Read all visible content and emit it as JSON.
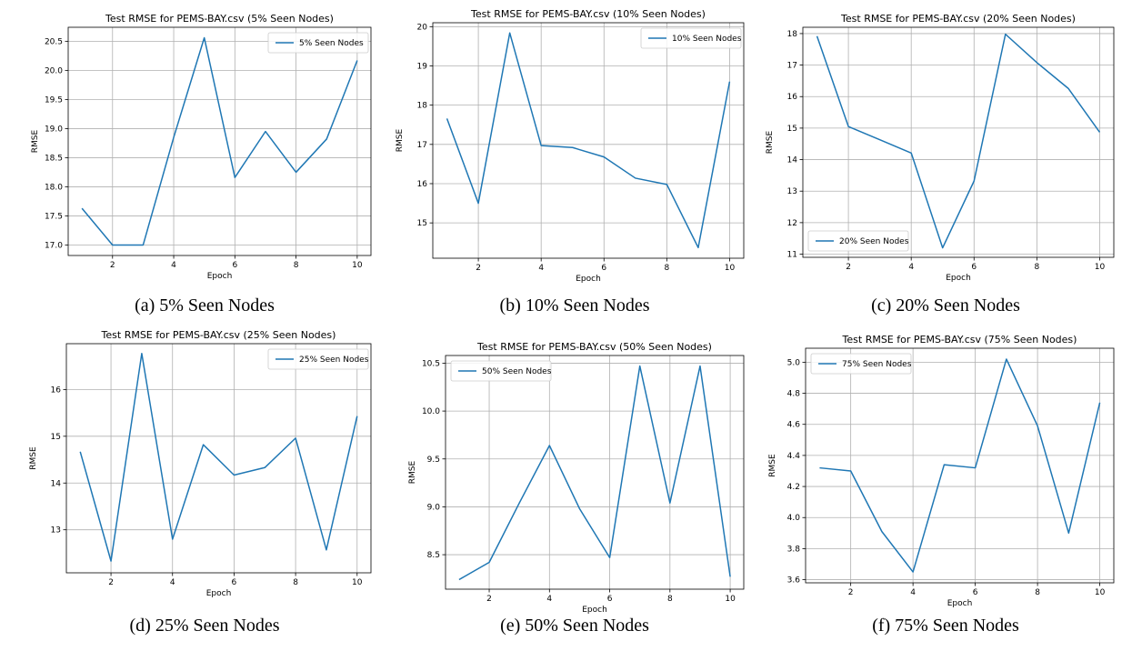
{
  "chart_data": [
    {
      "type": "line",
      "title": "Test RMSE for PEMS-BAY.csv (5% Seen Nodes)",
      "caption": "(a) 5% Seen Nodes",
      "xlabel": "Epoch",
      "ylabel": "RMSE",
      "legend": "top-right",
      "grid": true,
      "x": [
        1,
        2,
        3,
        4,
        5,
        6,
        7,
        8,
        9,
        10
      ],
      "series": [
        {
          "name": "5% Seen Nodes",
          "color": "#1f77b4",
          "values": [
            17.63,
            17.0,
            17.0,
            18.85,
            20.56,
            18.16,
            18.95,
            18.25,
            18.82,
            20.17
          ]
        }
      ],
      "xlim": [
        0.55,
        10.45
      ],
      "ylim": [
        16.82,
        20.74
      ],
      "xticks": [
        2,
        4,
        6,
        8,
        10
      ],
      "xtick_labels": [
        "2",
        "4",
        "6",
        "8",
        "10"
      ],
      "yticks": [
        17.0,
        17.5,
        18.0,
        18.5,
        19.0,
        19.5,
        20.0,
        20.5
      ],
      "ytick_labels": [
        "17.0",
        "17.5",
        "18.0",
        "18.5",
        "19.0",
        "19.5",
        "20.0",
        "20.5"
      ]
    },
    {
      "type": "line",
      "title": "Test RMSE for PEMS-BAY.csv (10% Seen Nodes)",
      "caption": "(b) 10% Seen Nodes",
      "xlabel": "Epoch",
      "ylabel": "RMSE",
      "legend": "top-right",
      "grid": true,
      "x": [
        1,
        2,
        3,
        4,
        5,
        6,
        7,
        8,
        9,
        10
      ],
      "series": [
        {
          "name": "10% Seen Nodes",
          "color": "#1f77b4",
          "values": [
            17.66,
            15.5,
            19.84,
            16.97,
            16.92,
            16.68,
            16.14,
            15.98,
            14.37,
            18.6
          ]
        }
      ],
      "xlim": [
        0.55,
        10.45
      ],
      "ylim": [
        14.1,
        20.1
      ],
      "xticks": [
        2,
        4,
        6,
        8,
        10
      ],
      "xtick_labels": [
        "2",
        "4",
        "6",
        "8",
        "10"
      ],
      "yticks": [
        15,
        16,
        17,
        18,
        19,
        20
      ],
      "ytick_labels": [
        "15",
        "16",
        "17",
        "18",
        "19",
        "20"
      ]
    },
    {
      "type": "line",
      "title": "Test RMSE for PEMS-BAY.csv (20% Seen Nodes)",
      "caption": "(c) 20% Seen Nodes",
      "xlabel": "Epoch",
      "ylabel": "RMSE",
      "legend": "lower-left",
      "grid": true,
      "x": [
        1,
        2,
        3,
        4,
        5,
        6,
        7,
        8,
        9,
        10
      ],
      "series": [
        {
          "name": "20% Seen Nodes",
          "color": "#1f77b4",
          "values": [
            17.92,
            15.05,
            14.63,
            14.21,
            11.2,
            13.32,
            17.98,
            17.08,
            16.26,
            14.87
          ]
        }
      ],
      "xlim": [
        0.55,
        10.45
      ],
      "ylim": [
        10.9,
        18.2
      ],
      "xticks": [
        2,
        4,
        6,
        8,
        10
      ],
      "xtick_labels": [
        "2",
        "4",
        "6",
        "8",
        "10"
      ],
      "yticks": [
        11,
        12,
        13,
        14,
        15,
        16,
        17,
        18
      ],
      "ytick_labels": [
        "11",
        "12",
        "13",
        "14",
        "15",
        "16",
        "17",
        "18"
      ]
    },
    {
      "type": "line",
      "title": "Test RMSE for PEMS-BAY.csv (25% Seen Nodes)",
      "caption": "(d) 25% Seen Nodes",
      "xlabel": "Epoch",
      "ylabel": "RMSE",
      "legend": "top-right",
      "grid": true,
      "x": [
        1,
        2,
        3,
        4,
        5,
        6,
        7,
        8,
        9,
        10
      ],
      "series": [
        {
          "name": "25% Seen Nodes",
          "color": "#1f77b4",
          "values": [
            14.67,
            12.33,
            16.77,
            12.8,
            14.82,
            14.17,
            14.33,
            14.96,
            12.57,
            15.43
          ]
        }
      ],
      "xlim": [
        0.55,
        10.45
      ],
      "ylim": [
        12.08,
        16.98
      ],
      "xticks": [
        2,
        4,
        6,
        8,
        10
      ],
      "xtick_labels": [
        "2",
        "4",
        "6",
        "8",
        "10"
      ],
      "yticks": [
        13,
        14,
        15,
        16
      ],
      "ytick_labels": [
        "13",
        "14",
        "15",
        "16"
      ]
    },
    {
      "type": "line",
      "title": "Test RMSE for PEMS-BAY.csv (50% Seen Nodes)",
      "caption": "(e) 50% Seen Nodes",
      "xlabel": "Epoch",
      "ylabel": "RMSE",
      "legend": "top-left",
      "grid": true,
      "x": [
        1,
        2,
        3,
        4,
        5,
        6,
        7,
        8,
        9,
        10
      ],
      "series": [
        {
          "name": "50% Seen Nodes",
          "color": "#1f77b4",
          "values": [
            8.24,
            8.42,
            9.04,
            9.64,
            8.98,
            8.47,
            10.47,
            9.04,
            10.47,
            8.27
          ]
        }
      ],
      "xlim": [
        0.55,
        10.45
      ],
      "ylim": [
        8.14,
        10.58
      ],
      "xticks": [
        2,
        4,
        6,
        8,
        10
      ],
      "xtick_labels": [
        "2",
        "4",
        "6",
        "8",
        "10"
      ],
      "yticks": [
        8.5,
        9.0,
        9.5,
        10.0,
        10.5
      ],
      "ytick_labels": [
        "8.5",
        "9.0",
        "9.5",
        "10.0",
        "10.5"
      ]
    },
    {
      "type": "line",
      "title": "Test RMSE for PEMS-BAY.csv (75% Seen Nodes)",
      "caption": "(f) 75% Seen Nodes",
      "xlabel": "Epoch",
      "ylabel": "RMSE",
      "legend": "top-left",
      "grid": true,
      "x": [
        1,
        2,
        3,
        4,
        5,
        6,
        7,
        8,
        9,
        10
      ],
      "series": [
        {
          "name": "75% Seen Nodes",
          "color": "#1f77b4",
          "values": [
            4.32,
            4.3,
            3.91,
            3.65,
            4.34,
            4.32,
            5.02,
            4.59,
            3.9,
            4.74
          ]
        }
      ],
      "xlim": [
        0.55,
        10.45
      ],
      "ylim": [
        3.58,
        5.09
      ],
      "xticks": [
        2,
        4,
        6,
        8,
        10
      ],
      "xtick_labels": [
        "2",
        "4",
        "6",
        "8",
        "10"
      ],
      "yticks": [
        3.6,
        3.8,
        4.0,
        4.2,
        4.4,
        4.6,
        4.8,
        5.0
      ],
      "ytick_labels": [
        "3.6",
        "3.8",
        "4.0",
        "4.2",
        "4.4",
        "4.6",
        "4.8",
        "5.0"
      ]
    }
  ]
}
